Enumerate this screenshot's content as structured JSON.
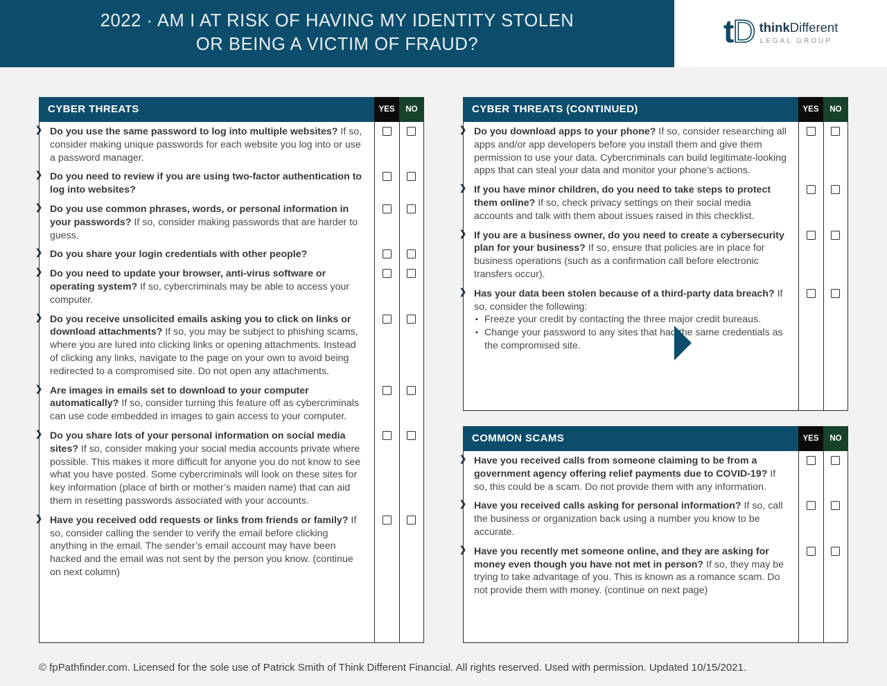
{
  "header": {
    "title_line1": "2022 · AM I AT RISK OF HAVING MY IDENTITY STOLEN",
    "title_line2": "OR BEING A VICTIM OF FRAUD?"
  },
  "logo": {
    "monogram_t": "t",
    "monogram_d": "D",
    "brand_bold": "think",
    "brand_regular": "Different",
    "tagline": "LEGAL GROUP"
  },
  "labels": {
    "yes": "YES",
    "no": "NO"
  },
  "colors": {
    "banner": "#0d4d6c",
    "yes_header": "#0b0b0b",
    "no_header": "#16432a",
    "page_background": "#f2f2f3"
  },
  "sections": [
    {
      "id": "cyber-threats",
      "title": "CYBER THREATS",
      "items": [
        {
          "q": "Do you use the same password to log into multiple websites?",
          "a": "If so, consider making unique passwords for each website you log into or use a password manager."
        },
        {
          "q": "Do you need to review if you are using two-factor authentication to log into websites?"
        },
        {
          "q": "Do you use common phrases, words, or personal information in your passwords?",
          "a": "If so, consider making passwords that are harder to guess."
        },
        {
          "q": "Do you share your login credentials with other people?"
        },
        {
          "q": "Do you need to update your browser, anti-virus software or operating system?",
          "a": "If so, cybercriminals may be able to access your computer."
        },
        {
          "q": "Do you receive unsolicited emails asking you to click on links or download attachments?",
          "a": "If so, you may be subject to phishing scams, where you are lured into clicking links or opening attachments. Instead of clicking any links, navigate to the page on your own to avoid being redirected to a compromised site. Do not open any attachments."
        },
        {
          "q": "Are images in emails set to download to your computer automatically?",
          "a": "If so, consider turning this feature off as cybercriminals can use code embedded in images to gain access to your computer."
        },
        {
          "q": "Do you share lots of your personal information on social media sites?",
          "a": "If so, consider making your social media accounts private where possible. This makes it more difficult for anyone you do not know to see what you have posted. Some cybercriminals will look on these sites for key information (place of birth or mother’s maiden name) that can aid them in resetting passwords associated with your accounts."
        },
        {
          "q": "Have you received odd requests or links from friends or family?",
          "a": "If so, consider calling the sender to verify the email before clicking anything in the email. The sender’s email account may have been hacked and the email was not sent by the person you know. (continue on next column)"
        }
      ]
    },
    {
      "id": "cyber-threats-continued",
      "title": "CYBER THREATS (CONTINUED)",
      "items": [
        {
          "q": "Do you download apps to your phone?",
          "a": "If so, consider researching all apps and/or app developers before you install them and give them permission to use your data. Cybercriminals can build legitimate-looking apps that can steal your data and monitor your phone’s actions."
        },
        {
          "q": "If you have minor children, do you need to take steps to protect them online?",
          "a": "If so, check privacy settings on their social media accounts and talk with them about issues raised in this checklist."
        },
        {
          "q": "If you are a business owner, do you need to create a cybersecurity plan for your business?",
          "a": "If so, ensure that policies are in place for business operations (such as a confirmation call before electronic transfers occur)."
        },
        {
          "q": "Has your data been stolen because of a third-party data breach?",
          "a": "If so, consider the following:",
          "bullets": [
            "Freeze your credit by contacting the three major credit bureaus.",
            "Change your password to any sites that had the same credentials as the compromised site."
          ]
        }
      ]
    },
    {
      "id": "common-scams",
      "title": "COMMON SCAMS",
      "items": [
        {
          "q": "Have you received calls from someone claiming to be from a government agency offering relief payments due to COVID-19?",
          "a": "If so, this could be a scam. Do not provide them with any information."
        },
        {
          "q": "Have you received calls asking for personal information?",
          "a": "If so, call the business or organization back using a number you know to be accurate."
        },
        {
          "q": "Have you recently met someone online, and they are asking for money even though you have not met in person?",
          "a": "If so, they may be trying to take advantage of you. This is known as a romance scam. Do not provide them with money. (continue on next page)"
        }
      ]
    }
  ],
  "footer": {
    "text": "© fpPathfinder.com. Licensed for the sole use of Patrick Smith of Think Different Financial. All rights reserved. Used with permission. Updated 10/15/2021."
  }
}
